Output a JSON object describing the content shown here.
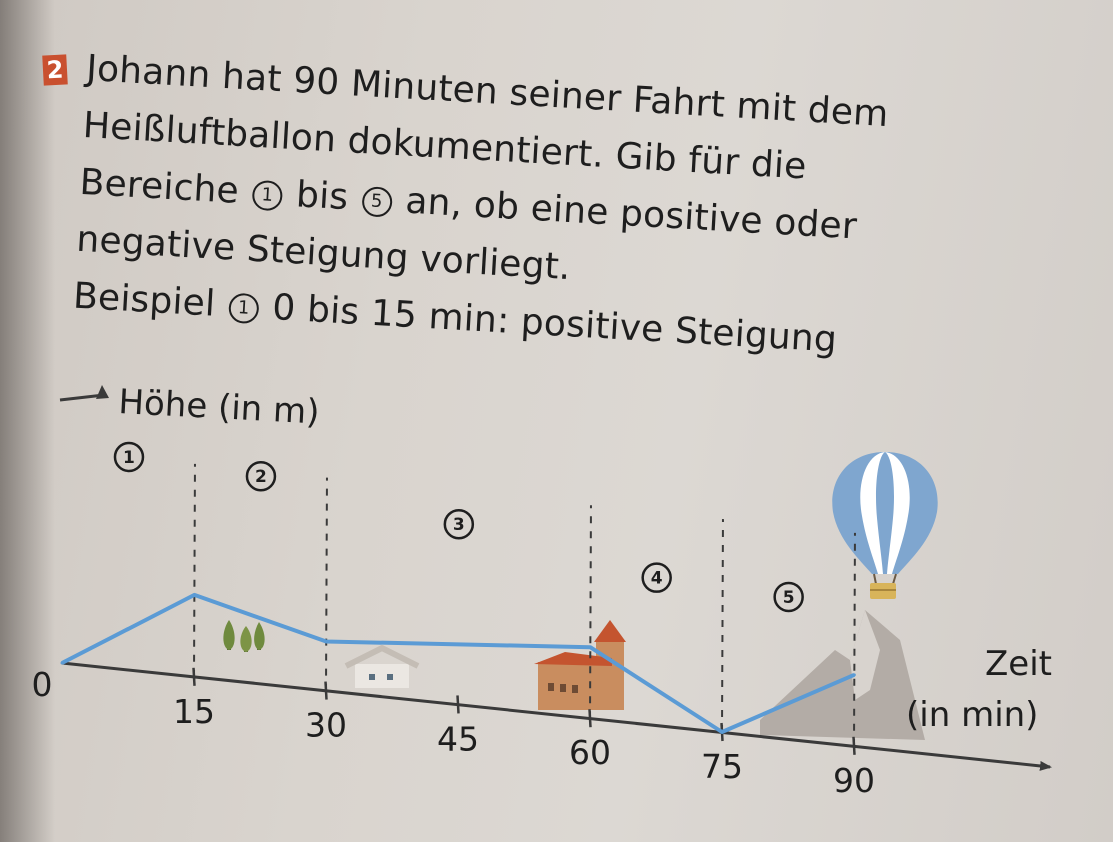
{
  "task": {
    "number": "2",
    "lines": [
      "Johann hat 90 Minuten seiner Fahrt mit dem",
      "Heißluftballon dokumentiert. Gib für die"
    ],
    "line3": {
      "pre": "Bereiche",
      "from": "1",
      "mid": "bis",
      "to": "5",
      "post": "an, ob eine positive oder"
    },
    "line4": "negative Steigung vorliegt.",
    "example": {
      "pre": "Beispiel",
      "marker": "1",
      "post": "0 bis 15 min: positive Steigung"
    }
  },
  "chart_data": {
    "type": "line",
    "ylabel": "Höhe (in m)",
    "xlabel_line1": "Zeit",
    "xlabel_line2": "(in min)",
    "x_ticks": [
      "0",
      "15",
      "30",
      "45",
      "60",
      "75",
      "90"
    ],
    "x": [
      0,
      15,
      30,
      60,
      75,
      90
    ],
    "y": [
      0.0,
      1.5,
      0.9,
      1.3,
      0.0,
      1.3
    ],
    "series_color": "#5b9bd5",
    "regions": [
      {
        "label": "1",
        "from": 0,
        "to": 15
      },
      {
        "label": "2",
        "from": 15,
        "to": 30
      },
      {
        "label": "3",
        "from": 30,
        "to": 60
      },
      {
        "label": "4",
        "from": 60,
        "to": 75
      },
      {
        "label": "5",
        "from": 75,
        "to": 90
      }
    ],
    "illustrations": [
      "trees-icon",
      "house-icon",
      "church-icon",
      "mountain-icon",
      "hot-air-balloon-icon"
    ]
  }
}
